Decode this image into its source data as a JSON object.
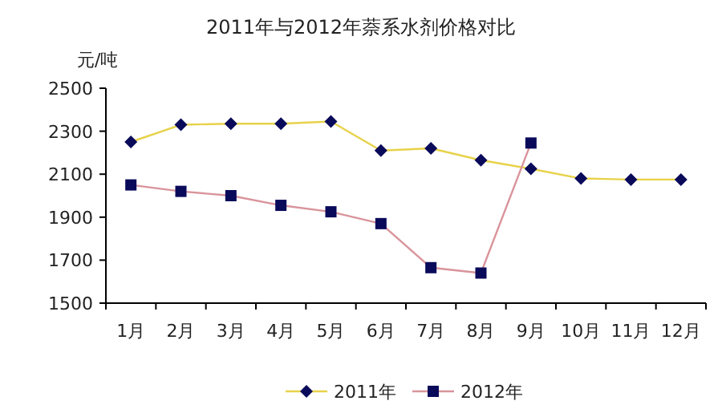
{
  "chart_data": {
    "type": "line",
    "title": "2011年与2012年萘系水剂价格对比",
    "ylabel": "元/吨",
    "categories": [
      "1月",
      "2月",
      "3月",
      "4月",
      "5月",
      "6月",
      "7月",
      "8月",
      "9月",
      "10月",
      "11月",
      "12月"
    ],
    "series": [
      {
        "name": "2011年",
        "color": "#e8d24a",
        "marker": "diamond",
        "values": [
          2250,
          2330,
          2335,
          2335,
          2345,
          2210,
          2220,
          2165,
          2125,
          2080,
          2075,
          2075
        ]
      },
      {
        "name": "2012年",
        "color": "#d9949b",
        "marker": "square",
        "values": [
          2050,
          2020,
          2000,
          1955,
          1925,
          1870,
          1665,
          1640,
          2245,
          null,
          null,
          null
        ]
      }
    ],
    "ylim": [
      1500,
      2500
    ],
    "yticks": [
      1500,
      1700,
      1900,
      2100,
      2300,
      2500
    ],
    "grid": false,
    "legend": "bottom"
  }
}
